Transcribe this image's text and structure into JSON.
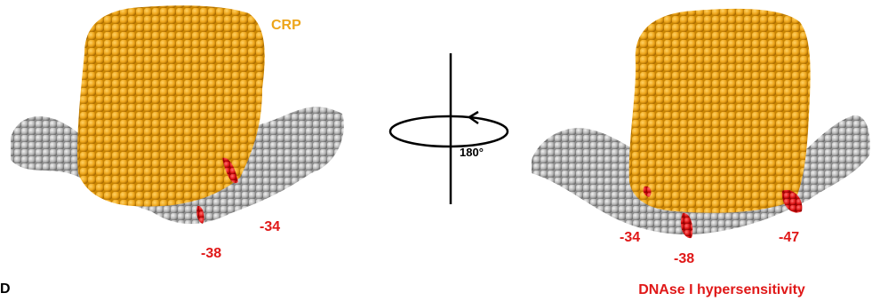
{
  "panel_label": "D",
  "left": {
    "protein_label": "CRP",
    "site_labels": [
      "-34",
      "-38"
    ]
  },
  "rotation": {
    "label": "180°"
  },
  "right": {
    "site_labels": [
      "-34",
      "-38",
      "-47"
    ],
    "caption": "DNAse I hypersensitivity"
  }
}
